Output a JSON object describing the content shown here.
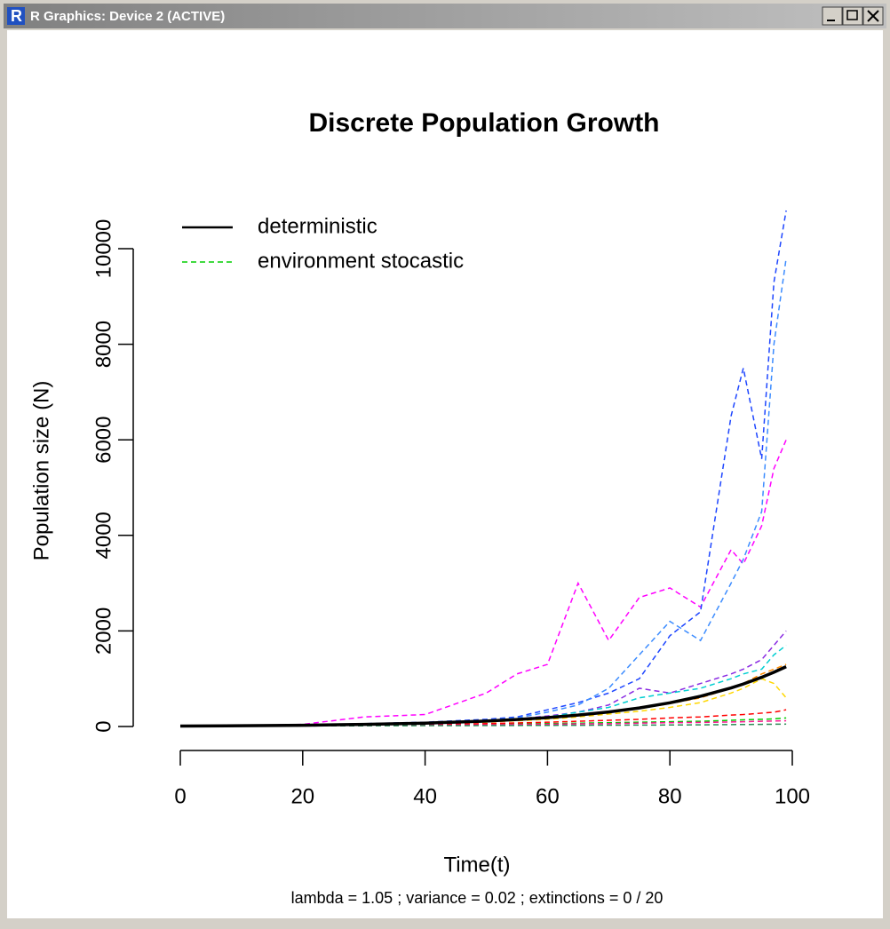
{
  "window": {
    "title": "R Graphics: Device 2 (ACTIVE)"
  },
  "chart_data": {
    "type": "line",
    "title": "Discrete Population Growth",
    "x_label": "Time(t)",
    "y_label": "Population size (N)",
    "subtitle": "lambda =  1.05 ; variance =  0.02 ; extinctions =  0 / 20",
    "x": [
      0,
      10,
      20,
      30,
      40,
      50,
      55,
      60,
      65,
      70,
      75,
      80,
      85,
      90,
      92,
      95,
      97,
      99
    ],
    "xlim": [
      0,
      100
    ],
    "xticks": [
      0,
      20,
      40,
      60,
      80,
      100
    ],
    "ylim": [
      0,
      10000
    ],
    "yticks": [
      0,
      2000,
      4000,
      6000,
      8000,
      10000
    ],
    "legend": [
      {
        "label": "deterministic",
        "color": "#000000",
        "dashed": false
      },
      {
        "label": "environment stocastic",
        "color": "#00cd00",
        "dashed": true
      }
    ],
    "series": [
      {
        "color": "#ff00ff",
        "dashed": true,
        "values": [
          10,
          18,
          45,
          200,
          250,
          700,
          1100,
          1300,
          3000,
          1800,
          2700,
          2900,
          2500,
          3700,
          3400,
          4200,
          5400,
          6000
        ]
      },
      {
        "color": "#1e46ff",
        "dashed": true,
        "values": [
          10,
          15,
          30,
          60,
          90,
          150,
          200,
          350,
          500,
          700,
          1000,
          1900,
          2400,
          6500,
          7500,
          5600,
          9300,
          10800
        ]
      },
      {
        "color": "#3c8cff",
        "dashed": true,
        "values": [
          10,
          14,
          28,
          50,
          80,
          130,
          180,
          300,
          450,
          800,
          1500,
          2200,
          1800,
          3000,
          3500,
          4500,
          8000,
          9800
        ]
      },
      {
        "color": "#8a2be2",
        "dashed": true,
        "values": [
          10,
          15,
          25,
          45,
          75,
          120,
          160,
          220,
          300,
          450,
          800,
          700,
          900,
          1100,
          1200,
          1400,
          1700,
          2000
        ]
      },
      {
        "color": "#00ced1",
        "dashed": true,
        "values": [
          10,
          15,
          25,
          40,
          65,
          110,
          150,
          200,
          300,
          400,
          600,
          700,
          800,
          1000,
          1100,
          1200,
          1500,
          1700
        ]
      },
      {
        "color": "#ffd700",
        "dashed": true,
        "values": [
          10,
          14,
          22,
          35,
          55,
          90,
          120,
          150,
          200,
          260,
          320,
          400,
          500,
          700,
          800,
          1000,
          900,
          600
        ]
      },
      {
        "color": "#ff8c00",
        "dashed": true,
        "values": [
          10,
          15,
          24,
          38,
          60,
          95,
          130,
          170,
          220,
          290,
          380,
          480,
          600,
          800,
          900,
          1100,
          1200,
          1300
        ]
      },
      {
        "color": "#00cd00",
        "dashed": true,
        "values": [
          10,
          12,
          18,
          25,
          35,
          45,
          55,
          60,
          70,
          80,
          90,
          100,
          110,
          130,
          140,
          150,
          160,
          180
        ]
      },
      {
        "color": "#ff0000",
        "dashed": true,
        "values": [
          10,
          13,
          20,
          30,
          45,
          60,
          75,
          90,
          110,
          130,
          150,
          180,
          200,
          240,
          250,
          280,
          300,
          350
        ]
      },
      {
        "color": "#ff1493",
        "dashed": true,
        "values": [
          10,
          11,
          15,
          20,
          28,
          35,
          40,
          45,
          55,
          60,
          70,
          80,
          85,
          95,
          100,
          110,
          115,
          120
        ]
      },
      {
        "color": "#2e8b57",
        "dashed": true,
        "values": [
          10,
          9,
          12,
          15,
          18,
          20,
          22,
          24,
          26,
          28,
          30,
          32,
          35,
          40,
          42,
          45,
          48,
          50
        ]
      },
      {
        "color": "#000000",
        "dashed": false,
        "values": [
          10,
          16.3,
          26.5,
          43.2,
          70.4,
          114.7,
          146.4,
          186.8,
          238.4,
          304.3,
          388.4,
          495.7,
          632.7,
          807.4,
          890.1,
          1030.4,
          1136.0,
          1252.4
        ]
      }
    ]
  }
}
